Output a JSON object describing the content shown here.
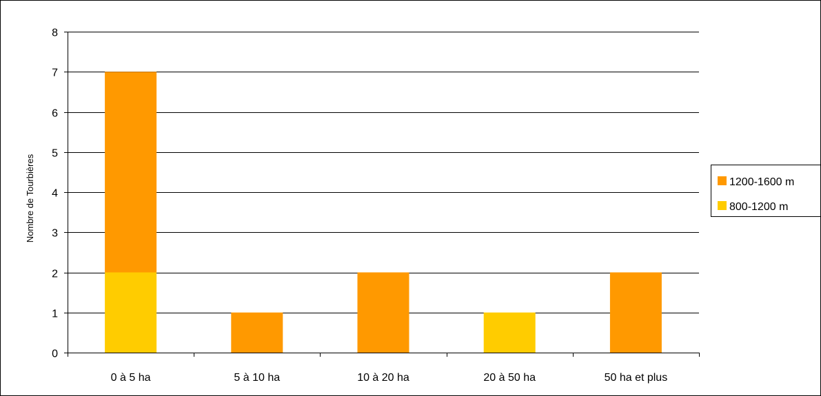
{
  "chart_data": {
    "type": "bar",
    "stacked": true,
    "categories": [
      "0 à 5 ha",
      "5 à 10 ha",
      "10 à 20 ha",
      "20 à 50 ha",
      "50 ha et plus"
    ],
    "series": [
      {
        "name": "800-1200 m",
        "values": [
          2,
          0,
          0,
          1,
          0
        ],
        "color": "#FFCC00"
      },
      {
        "name": "1200-1600 m",
        "values": [
          5,
          1,
          2,
          0,
          2
        ],
        "color": "#FF9900"
      }
    ],
    "ylabel": "Nombre de  Tourbières",
    "xlabel": "",
    "ylim": [
      0,
      8
    ],
    "yticks": [
      0,
      1,
      2,
      3,
      4,
      5,
      6,
      7,
      8
    ],
    "grid": true,
    "legend_position": "right",
    "legend_order": [
      "1200-1600 m",
      "800-1200 m"
    ]
  }
}
